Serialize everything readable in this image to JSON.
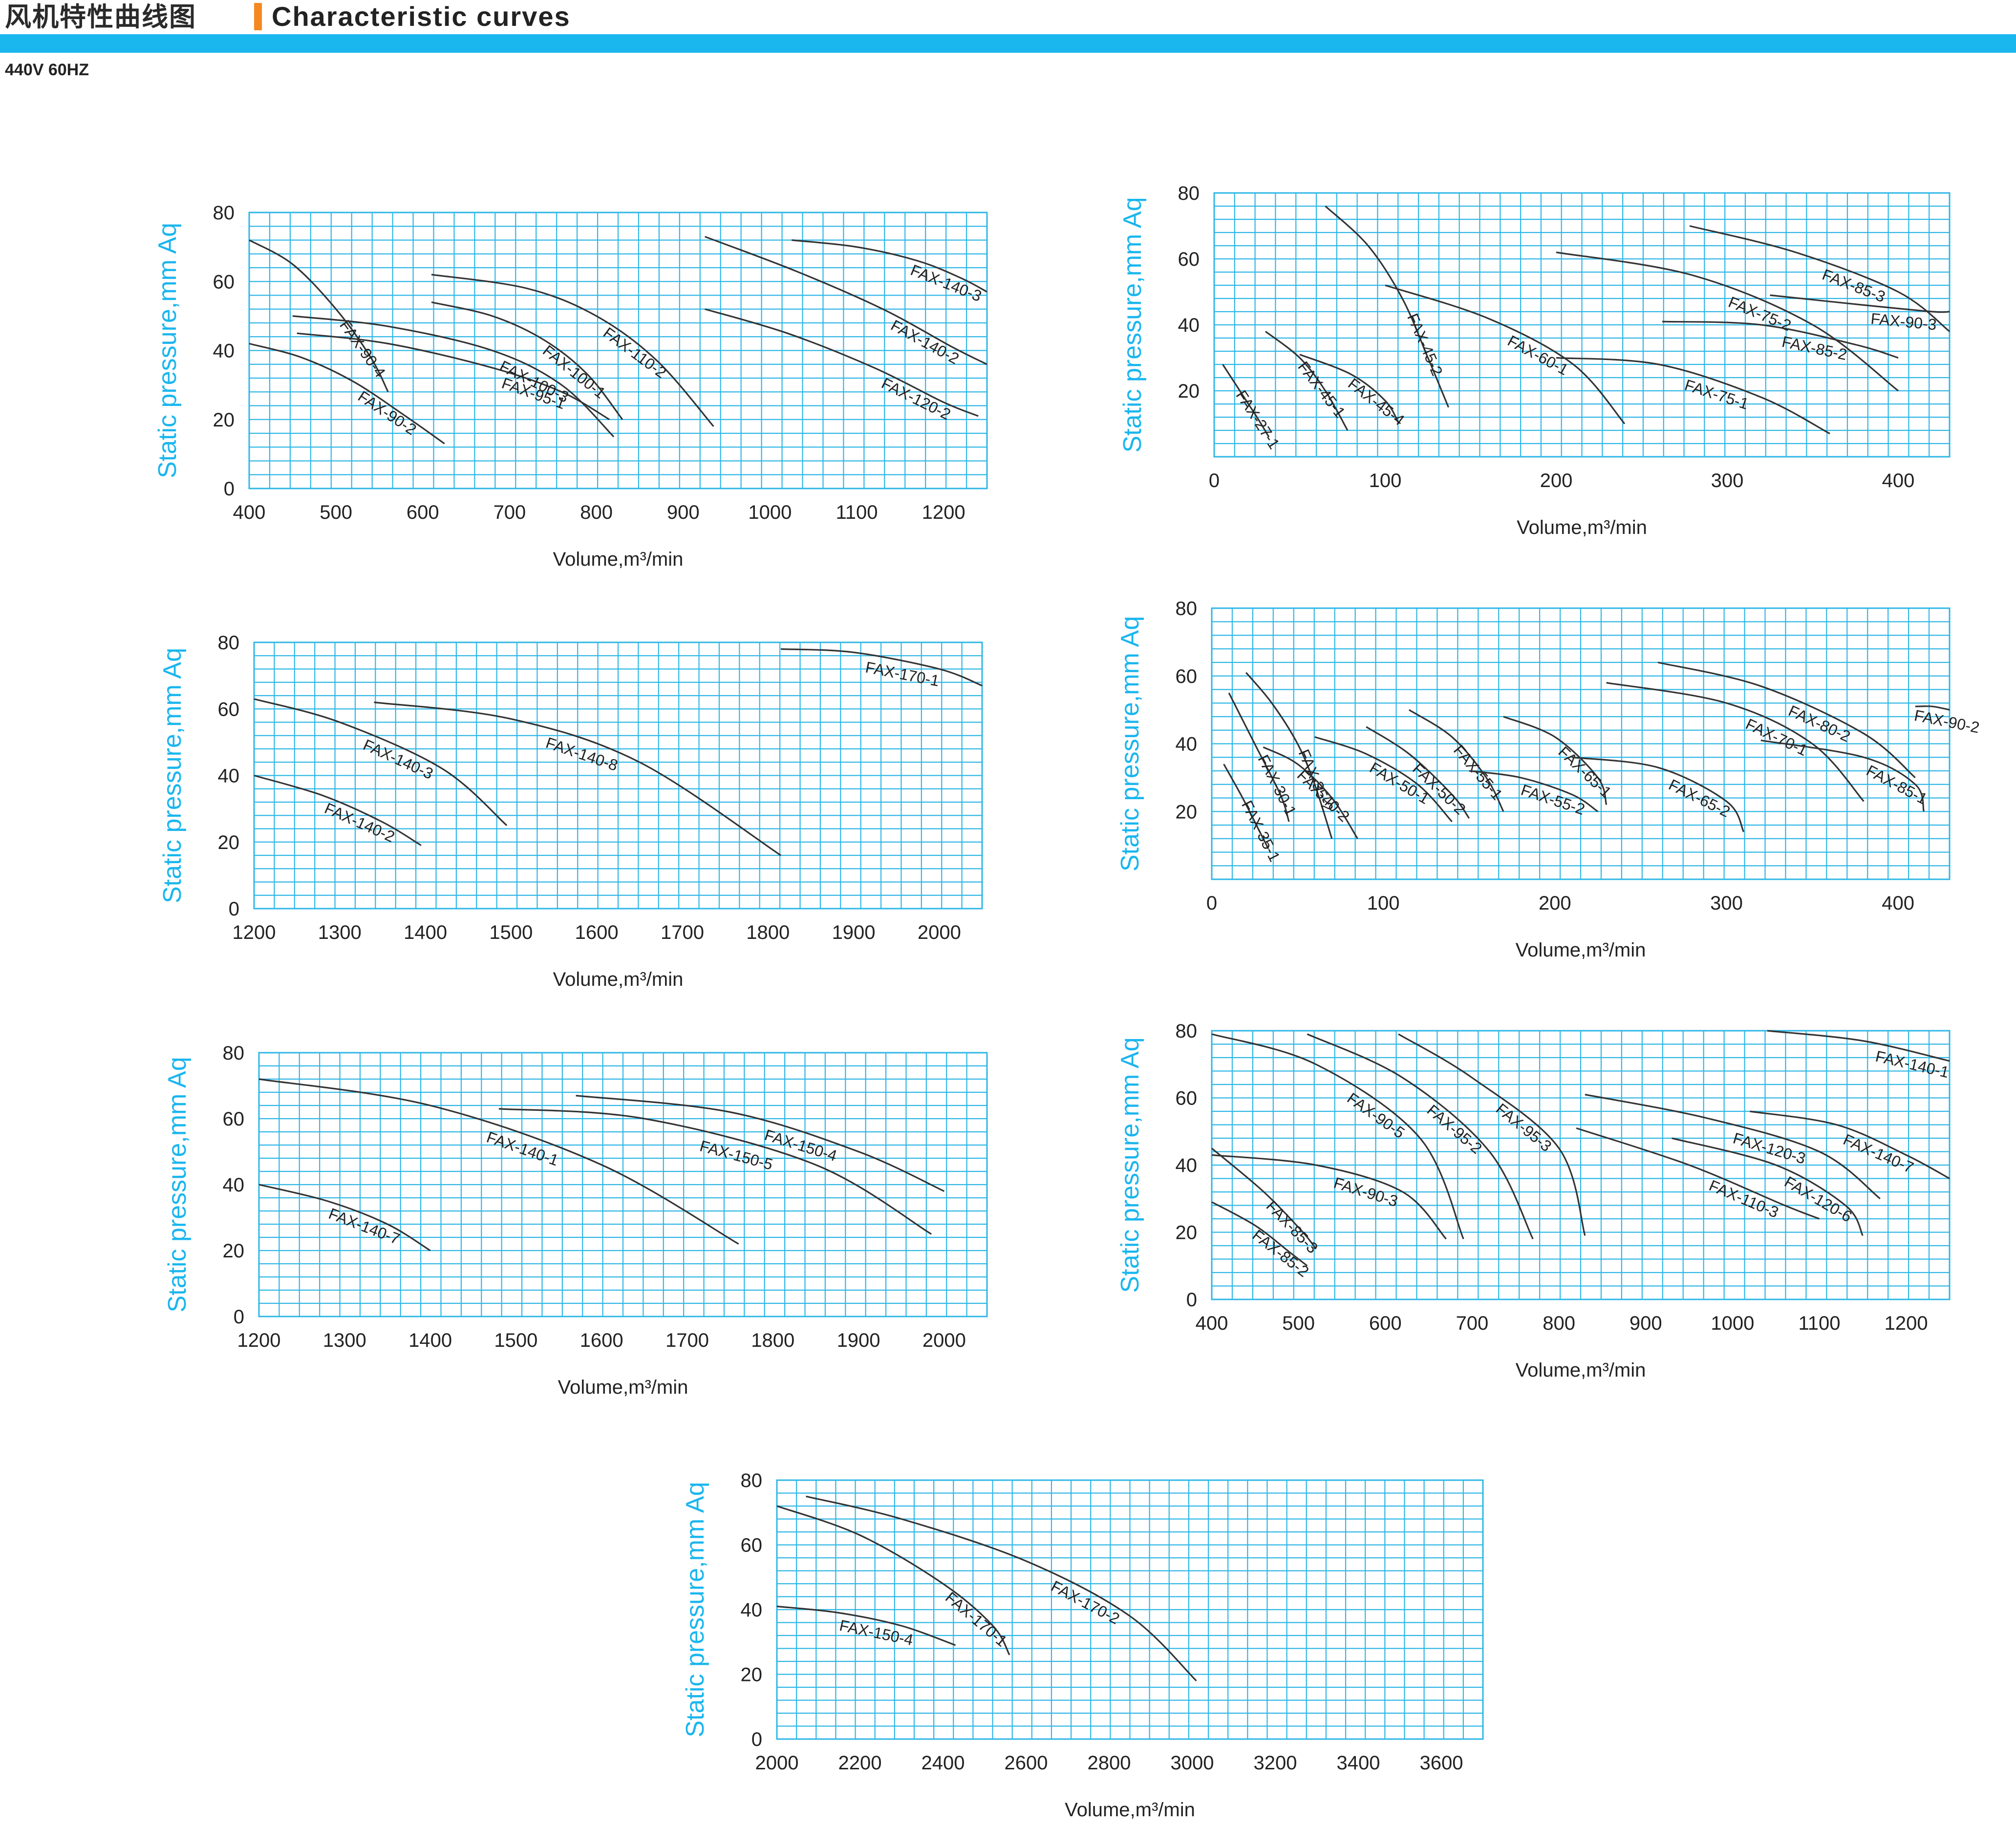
{
  "header": {
    "title_cn": "风机特性曲线图",
    "title_en": "Characteristic curves",
    "accent_color": "#f5891f",
    "band_color": "#1ab6ee",
    "subtitle": "440V 60HZ"
  },
  "chart_data": [
    {
      "type": "line",
      "ylabel": "Static pressure,mm Aq",
      "xlabel": "Volume,m³/min",
      "xlim": [
        400,
        1250
      ],
      "ylim": [
        0,
        80
      ],
      "xticks": [
        "400",
        "500",
        "600",
        "700",
        "800",
        "900",
        "1000",
        "1100",
        "1200"
      ],
      "yticks": [
        "0",
        "20",
        "40",
        "60",
        "80"
      ],
      "series": [
        {
          "name": "FAX-90-4",
          "x": [
            400,
            450,
            500,
            540,
            560
          ],
          "y": [
            72,
            65,
            52,
            38,
            28
          ]
        },
        {
          "name": "FAX-90-2",
          "x": [
            400,
            460,
            520,
            580,
            625
          ],
          "y": [
            42,
            38,
            31,
            21,
            13
          ]
        },
        {
          "name": "FAX-95-1",
          "x": [
            455,
            560,
            680,
            760,
            815
          ],
          "y": [
            45,
            42,
            35,
            28,
            20
          ]
        },
        {
          "name": "FAX-100-3",
          "x": [
            450,
            560,
            680,
            760,
            820
          ],
          "y": [
            50,
            47,
            40,
            30,
            15
          ]
        },
        {
          "name": "FAX-100-1",
          "x": [
            610,
            680,
            740,
            790,
            830
          ],
          "y": [
            54,
            50,
            43,
            33,
            20
          ]
        },
        {
          "name": "FAX-110-2",
          "x": [
            610,
            720,
            800,
            870,
            935
          ],
          "y": [
            62,
            58,
            50,
            37,
            18
          ]
        },
        {
          "name": "FAX-120-2",
          "x": [
            925,
            1020,
            1120,
            1200,
            1240
          ],
          "y": [
            52,
            45,
            35,
            25,
            21
          ]
        },
        {
          "name": "FAX-140-2",
          "x": [
            925,
            1030,
            1130,
            1210,
            1250
          ],
          "y": [
            73,
            63,
            52,
            41,
            36
          ]
        },
        {
          "name": "FAX-140-3",
          "x": [
            1025,
            1100,
            1170,
            1220,
            1250
          ],
          "y": [
            72,
            70,
            66,
            61,
            57
          ]
        }
      ]
    },
    {
      "type": "line",
      "ylabel": "Static pressure,mm Aq",
      "xlabel": "Volume,m³/min",
      "xlim": [
        0,
        430
      ],
      "ylim": [
        0,
        80
      ],
      "xticks": [
        "0",
        "100",
        "200",
        "300",
        "400"
      ],
      "yticks": [
        "20",
        "40",
        "60",
        "80"
      ],
      "series": [
        {
          "name": "FAX-27-1",
          "x": [
            5,
            15,
            25,
            32
          ],
          "y": [
            28,
            20,
            12,
            6
          ]
        },
        {
          "name": "FAX-45-1",
          "x": [
            30,
            50,
            65,
            78
          ],
          "y": [
            38,
            30,
            20,
            8
          ]
        },
        {
          "name": "FAX-45-4",
          "x": [
            50,
            80,
            100,
            108
          ],
          "y": [
            31,
            25,
            17,
            10
          ]
        },
        {
          "name": "FAX-45-2",
          "x": [
            65,
            90,
            110,
            125,
            137
          ],
          "y": [
            76,
            64,
            48,
            30,
            15
          ]
        },
        {
          "name": "FAX-60-1",
          "x": [
            100,
            160,
            210,
            240
          ],
          "y": [
            52,
            42,
            28,
            10
          ]
        },
        {
          "name": "FAX-75-1",
          "x": [
            200,
            260,
            320,
            360
          ],
          "y": [
            30,
            28,
            18,
            7
          ]
        },
        {
          "name": "FAX-75-2",
          "x": [
            200,
            280,
            350,
            400
          ],
          "y": [
            62,
            55,
            40,
            20
          ]
        },
        {
          "name": "FAX-85-2",
          "x": [
            262,
            320,
            375,
            400
          ],
          "y": [
            41,
            40,
            34,
            30
          ]
        },
        {
          "name": "FAX-85-3",
          "x": [
            278,
            340,
            400,
            430
          ],
          "y": [
            70,
            62,
            50,
            38
          ]
        },
        {
          "name": "FAX-90-3",
          "x": [
            325,
            380,
            420,
            430
          ],
          "y": [
            49,
            46,
            44,
            44
          ]
        }
      ]
    },
    {
      "type": "line",
      "ylabel": "Static pressure,mm Aq",
      "xlabel": "Volume,m³/min",
      "xlim": [
        1200,
        2050
      ],
      "ylim": [
        0,
        80
      ],
      "xticks": [
        "1200",
        "1300",
        "1400",
        "1500",
        "1600",
        "1700",
        "1800",
        "1900",
        "2000"
      ],
      "yticks": [
        "0",
        "20",
        "40",
        "60",
        "80"
      ],
      "series": [
        {
          "name": "FAX-140-2",
          "x": [
            1200,
            1280,
            1350,
            1395
          ],
          "y": [
            40,
            34,
            26,
            19
          ]
        },
        {
          "name": "FAX-140-3",
          "x": [
            1200,
            1300,
            1420,
            1495
          ],
          "y": [
            63,
            56,
            42,
            25
          ]
        },
        {
          "name": "FAX-140-8",
          "x": [
            1340,
            1500,
            1650,
            1815
          ],
          "y": [
            62,
            57,
            44,
            16
          ]
        },
        {
          "name": "FAX-170-1",
          "x": [
            1815,
            1900,
            2000,
            2050
          ],
          "y": [
            78,
            77,
            72,
            67
          ]
        }
      ]
    },
    {
      "type": "line",
      "ylabel": "Static pressure,mm Aq",
      "xlabel": "Volume,m³/min",
      "xlim": [
        0,
        430
      ],
      "ylim": [
        0,
        80
      ],
      "xticks": [
        "0",
        "100",
        "200",
        "300",
        "400"
      ],
      "yticks": [
        "20",
        "40",
        "60",
        "80"
      ],
      "series": [
        {
          "name": "FAX-35-1",
          "x": [
            7,
            18,
            28,
            33
          ],
          "y": [
            34,
            24,
            14,
            9
          ]
        },
        {
          "name": "FAX-30-1",
          "x": [
            10,
            25,
            40,
            45
          ],
          "y": [
            55,
            40,
            25,
            17
          ]
        },
        {
          "name": "FAX-35-2",
          "x": [
            20,
            35,
            50,
            60,
            70
          ],
          "y": [
            61,
            52,
            40,
            28,
            12
          ]
        },
        {
          "name": "FAX-40-2",
          "x": [
            30,
            50,
            70,
            85
          ],
          "y": [
            39,
            34,
            24,
            12
          ]
        },
        {
          "name": "FAX-50-1",
          "x": [
            60,
            90,
            120,
            140
          ],
          "y": [
            42,
            37,
            28,
            17
          ]
        },
        {
          "name": "FAX-50-2",
          "x": [
            90,
            115,
            140,
            150
          ],
          "y": [
            45,
            37,
            25,
            18
          ]
        },
        {
          "name": "FAX-55-1",
          "x": [
            115,
            140,
            160,
            170
          ],
          "y": [
            50,
            42,
            30,
            20
          ]
        },
        {
          "name": "FAX-55-2",
          "x": [
            150,
            180,
            210,
            225
          ],
          "y": [
            32,
            30,
            25,
            20
          ]
        },
        {
          "name": "FAX-65-1",
          "x": [
            170,
            200,
            225,
            230
          ],
          "y": [
            48,
            42,
            30,
            22
          ]
        },
        {
          "name": "FAX-65-2",
          "x": [
            210,
            260,
            300,
            310
          ],
          "y": [
            36,
            33,
            23,
            14
          ]
        },
        {
          "name": "FAX-70-1",
          "x": [
            230,
            300,
            350,
            380
          ],
          "y": [
            58,
            52,
            40,
            23
          ]
        },
        {
          "name": "FAX-80-2",
          "x": [
            260,
            320,
            380,
            410
          ],
          "y": [
            64,
            57,
            43,
            30
          ]
        },
        {
          "name": "FAX-85-1",
          "x": [
            320,
            380,
            410,
            415
          ],
          "y": [
            41,
            36,
            28,
            20
          ]
        },
        {
          "name": "FAX-90-2",
          "x": [
            410,
            420,
            430
          ],
          "y": [
            51,
            51,
            50
          ]
        }
      ]
    },
    {
      "type": "line",
      "ylabel": "Static pressure,mm Aq",
      "xlabel": "Volume,m³/min",
      "xlim": [
        1200,
        2050
      ],
      "ylim": [
        0,
        80
      ],
      "xticks": [
        "1200",
        "1300",
        "1400",
        "1500",
        "1600",
        "1700",
        "1800",
        "1900",
        "2000"
      ],
      "yticks": [
        "0",
        "20",
        "40",
        "60",
        "80"
      ],
      "series": [
        {
          "name": "FAX-140-7",
          "x": [
            1200,
            1280,
            1350,
            1400
          ],
          "y": [
            40,
            35,
            28,
            20
          ]
        },
        {
          "name": "FAX-140-1",
          "x": [
            1200,
            1400,
            1600,
            1760
          ],
          "y": [
            72,
            64,
            46,
            22
          ]
        },
        {
          "name": "FAX-150-5",
          "x": [
            1480,
            1650,
            1850,
            1985
          ],
          "y": [
            63,
            60,
            46,
            25
          ]
        },
        {
          "name": "FAX-150-4",
          "x": [
            1570,
            1750,
            1900,
            2000
          ],
          "y": [
            67,
            62,
            50,
            38
          ]
        }
      ]
    },
    {
      "type": "line",
      "ylabel": "Static pressure,mm Aq",
      "xlabel": "Volume,m³/min",
      "xlim": [
        400,
        1250
      ],
      "ylim": [
        0,
        80
      ],
      "xticks": [
        "400",
        "500",
        "600",
        "700",
        "800",
        "900",
        "1000",
        "1100",
        "1200"
      ],
      "yticks": [
        "0",
        "20",
        "40",
        "60",
        "80"
      ],
      "series": [
        {
          "name": "FAX-85-2",
          "x": [
            400,
            450,
            490,
            510
          ],
          "y": [
            29,
            22,
            14,
            10
          ]
        },
        {
          "name": "FAX-85-3",
          "x": [
            400,
            460,
            505,
            520
          ],
          "y": [
            45,
            32,
            20,
            15
          ]
        },
        {
          "name": "FAX-90-3",
          "x": [
            400,
            520,
            620,
            670
          ],
          "y": [
            43,
            40,
            32,
            18
          ]
        },
        {
          "name": "FAX-90-5",
          "x": [
            400,
            520,
            640,
            690
          ],
          "y": [
            79,
            70,
            48,
            18
          ]
        },
        {
          "name": "FAX-95-2",
          "x": [
            510,
            620,
            720,
            770
          ],
          "y": [
            79,
            66,
            44,
            18
          ]
        },
        {
          "name": "FAX-95-3",
          "x": [
            615,
            700,
            800,
            830
          ],
          "y": [
            79,
            66,
            45,
            19
          ]
        },
        {
          "name": "FAX-110-3",
          "x": [
            820,
            950,
            1060,
            1100
          ],
          "y": [
            51,
            40,
            28,
            24
          ]
        },
        {
          "name": "FAX-120-6",
          "x": [
            930,
            1050,
            1130,
            1150
          ],
          "y": [
            48,
            40,
            28,
            19
          ]
        },
        {
          "name": "FAX-120-3",
          "x": [
            830,
            970,
            1100,
            1170
          ],
          "y": [
            61,
            54,
            44,
            30
          ]
        },
        {
          "name": "FAX-140-7",
          "x": [
            1020,
            1120,
            1200,
            1250
          ],
          "y": [
            56,
            52,
            43,
            36
          ]
        },
        {
          "name": "FAX-140-1",
          "x": [
            1040,
            1150,
            1250
          ],
          "y": [
            80,
            77,
            71
          ]
        }
      ]
    },
    {
      "type": "line",
      "ylabel": "Static pressure,mm Aq",
      "xlabel": "Volume,m³/min",
      "xlim": [
        2000,
        3700
      ],
      "ylim": [
        0,
        80
      ],
      "xticks": [
        "2000",
        "2200",
        "2400",
        "2600",
        "2800",
        "3000",
        "3200",
        "3400",
        "3600"
      ],
      "yticks": [
        "0",
        "20",
        "40",
        "60",
        "80"
      ],
      "series": [
        {
          "name": "FAX-150-4",
          "x": [
            2000,
            2150,
            2300,
            2430
          ],
          "y": [
            41,
            39,
            35,
            29
          ]
        },
        {
          "name": "FAX-170-1",
          "x": [
            2000,
            2200,
            2400,
            2520,
            2560
          ],
          "y": [
            72,
            63,
            48,
            35,
            26
          ]
        },
        {
          "name": "FAX-170-2",
          "x": [
            2070,
            2300,
            2600,
            2850,
            3010
          ],
          "y": [
            75,
            68,
            55,
            38,
            18
          ]
        }
      ]
    }
  ]
}
